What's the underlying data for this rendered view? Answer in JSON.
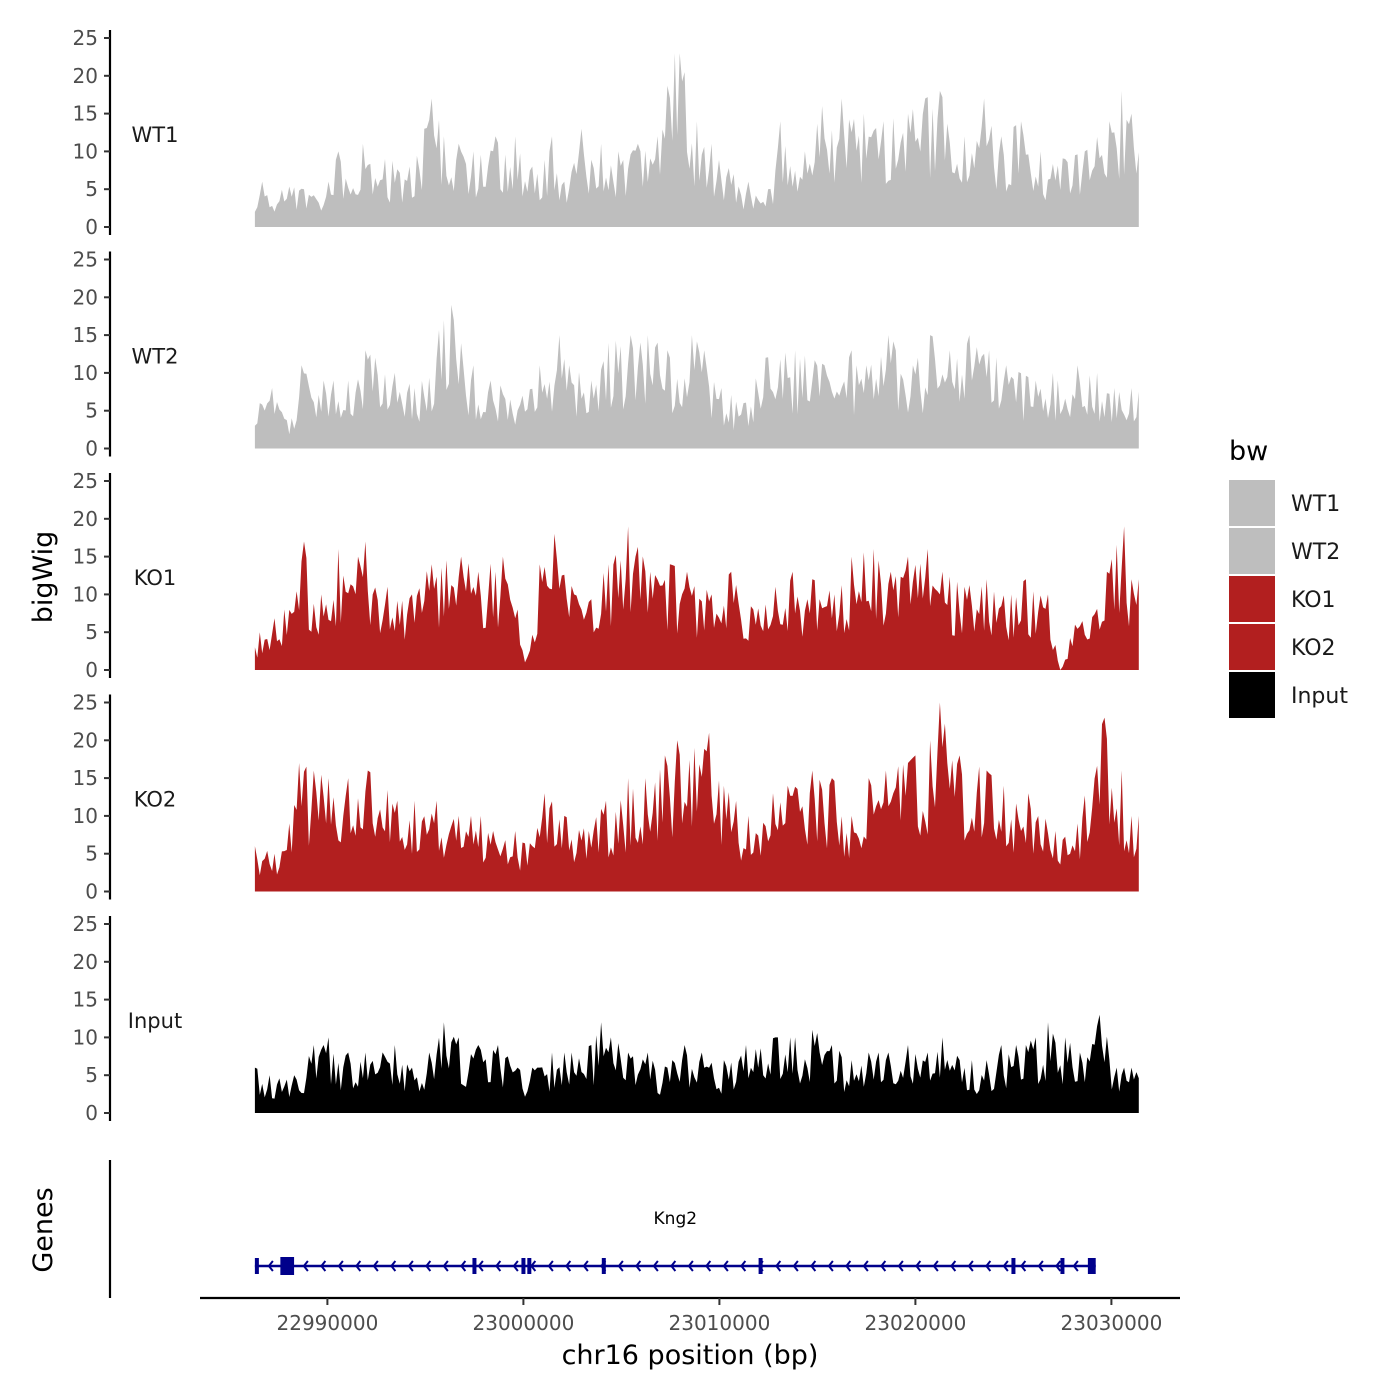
{
  "chart_data": {
    "type": "area",
    "chromosome": "chr16",
    "xlabel": "chr16 position (bp)",
    "ylabel_tracks": "bigWig",
    "ylabel_genes": "Genes",
    "xlim": [
      22983500,
      23033500
    ],
    "x_ticks": [
      22990000,
      23000000,
      23010000,
      23020000,
      23030000
    ],
    "x_tick_labels": [
      "22990000",
      "23000000",
      "23010000",
      "23020000",
      "23030000"
    ],
    "data_range": [
      22986300,
      23031400
    ],
    "ylim": [
      0,
      25
    ],
    "y_ticks": [
      0,
      5,
      10,
      15,
      20,
      25
    ],
    "y_tick_labels": [
      "0",
      "5",
      "10",
      "15",
      "20",
      "25"
    ],
    "legend": {
      "title": "bw",
      "position": "right",
      "entries": [
        {
          "label": "WT1",
          "color": "#bebebe"
        },
        {
          "label": "WT2",
          "color": "#bebebe"
        },
        {
          "label": "KO1",
          "color": "#b21f1f"
        },
        {
          "label": "KO2",
          "color": "#b21f1f"
        },
        {
          "label": "Input",
          "color": "#000000"
        }
      ]
    },
    "series": [
      {
        "name": "WT1",
        "color": "#bebebe",
        "approx_peaks": [
          [
            22986300,
            2
          ],
          [
            22986700,
            6
          ],
          [
            22988800,
            5
          ],
          [
            22990000,
            6
          ],
          [
            22990600,
            10
          ],
          [
            22991800,
            11
          ],
          [
            22993000,
            9
          ],
          [
            22994200,
            8
          ],
          [
            22994900,
            13
          ],
          [
            22995300,
            17
          ],
          [
            22996000,
            12
          ],
          [
            22997400,
            10
          ],
          [
            22998600,
            12
          ],
          [
            22999600,
            12
          ],
          [
            23000500,
            8
          ],
          [
            23001400,
            12
          ],
          [
            23002100,
            6
          ],
          [
            23003000,
            13
          ],
          [
            23004000,
            11
          ],
          [
            23004900,
            10
          ],
          [
            23005900,
            11
          ],
          [
            23006800,
            12
          ],
          [
            23007700,
            23
          ],
          [
            23008000,
            23
          ],
          [
            23008800,
            14
          ],
          [
            23009600,
            11
          ],
          [
            23010700,
            7
          ],
          [
            23011500,
            6
          ],
          [
            23012500,
            5
          ],
          [
            23013100,
            14
          ],
          [
            23014400,
            10
          ],
          [
            23015200,
            16
          ],
          [
            23016200,
            17
          ],
          [
            23017400,
            15
          ],
          [
            23018400,
            14
          ],
          [
            23019600,
            15
          ],
          [
            23020500,
            17
          ],
          [
            23021200,
            18
          ],
          [
            23022500,
            12
          ],
          [
            23023500,
            17
          ],
          [
            23024400,
            12
          ],
          [
            23025400,
            14
          ],
          [
            23026400,
            10
          ],
          [
            23027600,
            9
          ],
          [
            23028700,
            10
          ],
          [
            23029900,
            14
          ],
          [
            23030500,
            18
          ],
          [
            23031000,
            15
          ]
        ]
      },
      {
        "name": "WT2",
        "color": "#bebebe",
        "approx_peaks": [
          [
            22986300,
            3
          ],
          [
            22986600,
            6
          ],
          [
            22987200,
            8
          ],
          [
            22988200,
            4
          ],
          [
            22988700,
            11
          ],
          [
            22989800,
            9
          ],
          [
            22991000,
            9
          ],
          [
            22991900,
            13
          ],
          [
            22992400,
            12
          ],
          [
            22993400,
            10
          ],
          [
            22994500,
            8
          ],
          [
            22995900,
            17
          ],
          [
            22996300,
            19
          ],
          [
            22997400,
            11
          ],
          [
            22998300,
            9
          ],
          [
            22999900,
            7
          ],
          [
            23000800,
            11
          ],
          [
            23001800,
            15
          ],
          [
            23002300,
            11
          ],
          [
            23003500,
            9
          ],
          [
            23004400,
            14
          ],
          [
            23005500,
            15
          ],
          [
            23006300,
            15
          ],
          [
            23007400,
            13
          ],
          [
            23008600,
            15
          ],
          [
            23009200,
            13
          ],
          [
            23010100,
            8
          ],
          [
            23011200,
            6
          ],
          [
            23012400,
            12
          ],
          [
            23013800,
            13
          ],
          [
            23015400,
            11
          ],
          [
            23016700,
            13
          ],
          [
            23017500,
            11
          ],
          [
            23018600,
            15
          ],
          [
            23019900,
            11
          ],
          [
            23020800,
            15
          ],
          [
            23021700,
            13
          ],
          [
            23022800,
            15
          ],
          [
            23023700,
            13
          ],
          [
            23024600,
            11
          ],
          [
            23026100,
            9
          ],
          [
            23027000,
            10
          ],
          [
            23028300,
            11
          ],
          [
            23029300,
            10
          ],
          [
            23030100,
            8
          ],
          [
            23031000,
            8
          ]
        ]
      },
      {
        "name": "KO1",
        "color": "#b21f1f",
        "approx_peaks": [
          [
            22986300,
            3
          ],
          [
            22986500,
            5
          ],
          [
            22987800,
            8
          ],
          [
            22988800,
            17
          ],
          [
            22989700,
            10
          ],
          [
            22990600,
            16
          ],
          [
            22991500,
            15
          ],
          [
            22992000,
            17
          ],
          [
            22993100,
            11
          ],
          [
            22994300,
            10
          ],
          [
            22995300,
            14
          ],
          [
            22996800,
            15
          ],
          [
            22997700,
            13
          ],
          [
            22998900,
            15
          ],
          [
            22999700,
            8
          ],
          [
            23000100,
            1
          ],
          [
            23000800,
            14
          ],
          [
            23001600,
            18
          ],
          [
            23002600,
            10
          ],
          [
            23003400,
            9
          ],
          [
            23004300,
            14
          ],
          [
            23005300,
            19
          ],
          [
            23006500,
            13
          ],
          [
            23007500,
            14
          ],
          [
            23008400,
            13
          ],
          [
            23009600,
            10
          ],
          [
            23010600,
            13
          ],
          [
            23011700,
            8
          ],
          [
            23012800,
            11
          ],
          [
            23013700,
            13
          ],
          [
            23014800,
            12
          ],
          [
            23015900,
            10
          ],
          [
            23016700,
            15
          ],
          [
            23017900,
            16
          ],
          [
            23018800,
            13
          ],
          [
            23019600,
            15
          ],
          [
            23020600,
            16
          ],
          [
            23021400,
            13
          ],
          [
            23022500,
            11
          ],
          [
            23023600,
            12
          ],
          [
            23024900,
            10
          ],
          [
            23025600,
            12
          ],
          [
            23026800,
            10
          ],
          [
            23027400,
            0
          ],
          [
            23028100,
            6
          ],
          [
            23029000,
            7
          ],
          [
            23029800,
            13
          ],
          [
            23030600,
            19
          ],
          [
            23031000,
            12
          ]
        ]
      },
      {
        "name": "KO2",
        "color": "#b21f1f",
        "approx_peaks": [
          [
            22986300,
            6
          ],
          [
            22987300,
            5
          ],
          [
            22988100,
            9
          ],
          [
            22988600,
            17
          ],
          [
            22990000,
            15
          ],
          [
            22991000,
            15
          ],
          [
            22992100,
            16
          ],
          [
            22993600,
            12
          ],
          [
            22994400,
            12
          ],
          [
            22995600,
            12
          ],
          [
            22996700,
            10
          ],
          [
            22997800,
            10
          ],
          [
            22998500,
            8
          ],
          [
            22999600,
            8
          ],
          [
            23000500,
            6
          ],
          [
            23001100,
            13
          ],
          [
            23002100,
            10
          ],
          [
            23003300,
            8
          ],
          [
            23004200,
            12
          ],
          [
            23005400,
            15
          ],
          [
            23006200,
            15
          ],
          [
            23007200,
            18
          ],
          [
            23007900,
            20
          ],
          [
            23008700,
            19
          ],
          [
            23009500,
            21
          ],
          [
            23010200,
            14
          ],
          [
            23011500,
            10
          ],
          [
            23012700,
            13
          ],
          [
            23013500,
            14
          ],
          [
            23014700,
            16
          ],
          [
            23015800,
            15
          ],
          [
            23016700,
            10
          ],
          [
            23017600,
            15
          ],
          [
            23018500,
            16
          ],
          [
            23019600,
            17
          ],
          [
            23020800,
            20
          ],
          [
            23021300,
            25
          ],
          [
            23022300,
            18
          ],
          [
            23023600,
            16
          ],
          [
            23024500,
            14
          ],
          [
            23025700,
            13
          ],
          [
            23027100,
            8
          ],
          [
            23028300,
            9
          ],
          [
            23029600,
            23
          ],
          [
            23030500,
            16
          ],
          [
            23031000,
            10
          ]
        ]
      },
      {
        "name": "Input",
        "color": "#000000",
        "approx_peaks": [
          [
            22986300,
            6
          ],
          [
            22987100,
            5
          ],
          [
            22988300,
            5
          ],
          [
            22989300,
            9
          ],
          [
            22990000,
            10
          ],
          [
            22991000,
            8
          ],
          [
            22991900,
            8
          ],
          [
            22993400,
            9
          ],
          [
            22994300,
            6
          ],
          [
            22995200,
            8
          ],
          [
            22996000,
            12
          ],
          [
            22996700,
            10
          ],
          [
            22997700,
            9
          ],
          [
            22998700,
            9
          ],
          [
            22999700,
            6
          ],
          [
            23000800,
            6
          ],
          [
            23001400,
            8
          ],
          [
            23002400,
            8
          ],
          [
            23003500,
            9
          ],
          [
            23004000,
            12
          ],
          [
            23004500,
            10
          ],
          [
            23005400,
            8
          ],
          [
            23006300,
            8
          ],
          [
            23007300,
            6
          ],
          [
            23008200,
            9
          ],
          [
            23009100,
            8
          ],
          [
            23010200,
            7
          ],
          [
            23011300,
            9
          ],
          [
            23012900,
            10
          ],
          [
            23013900,
            10
          ],
          [
            23014800,
            11
          ],
          [
            23015700,
            9
          ],
          [
            23016800,
            7
          ],
          [
            23017600,
            8
          ],
          [
            23018600,
            8
          ],
          [
            23019600,
            9
          ],
          [
            23020600,
            8
          ],
          [
            23021400,
            10
          ],
          [
            23022300,
            7
          ],
          [
            23023600,
            7
          ],
          [
            23024400,
            9
          ],
          [
            23025600,
            9
          ],
          [
            23026100,
            10
          ],
          [
            23026800,
            12
          ],
          [
            23027600,
            10
          ],
          [
            23028400,
            8
          ],
          [
            23029400,
            13
          ],
          [
            23030300,
            6
          ],
          [
            23031000,
            6
          ]
        ]
      }
    ],
    "genes": [
      {
        "name": "Kng2",
        "strand": "-",
        "start": 22986300,
        "end": 23029200,
        "exons": [
          [
            22986300,
            22986400
          ],
          [
            22987600,
            22988300
          ],
          [
            22997400,
            22997500
          ],
          [
            22999900,
            23000000
          ],
          [
            23000200,
            23000300
          ],
          [
            23004000,
            23004100
          ],
          [
            23012000,
            23012100
          ],
          [
            23024900,
            23025000
          ],
          [
            23027400,
            23027500
          ],
          [
            23028800,
            23029200
          ]
        ]
      }
    ]
  }
}
